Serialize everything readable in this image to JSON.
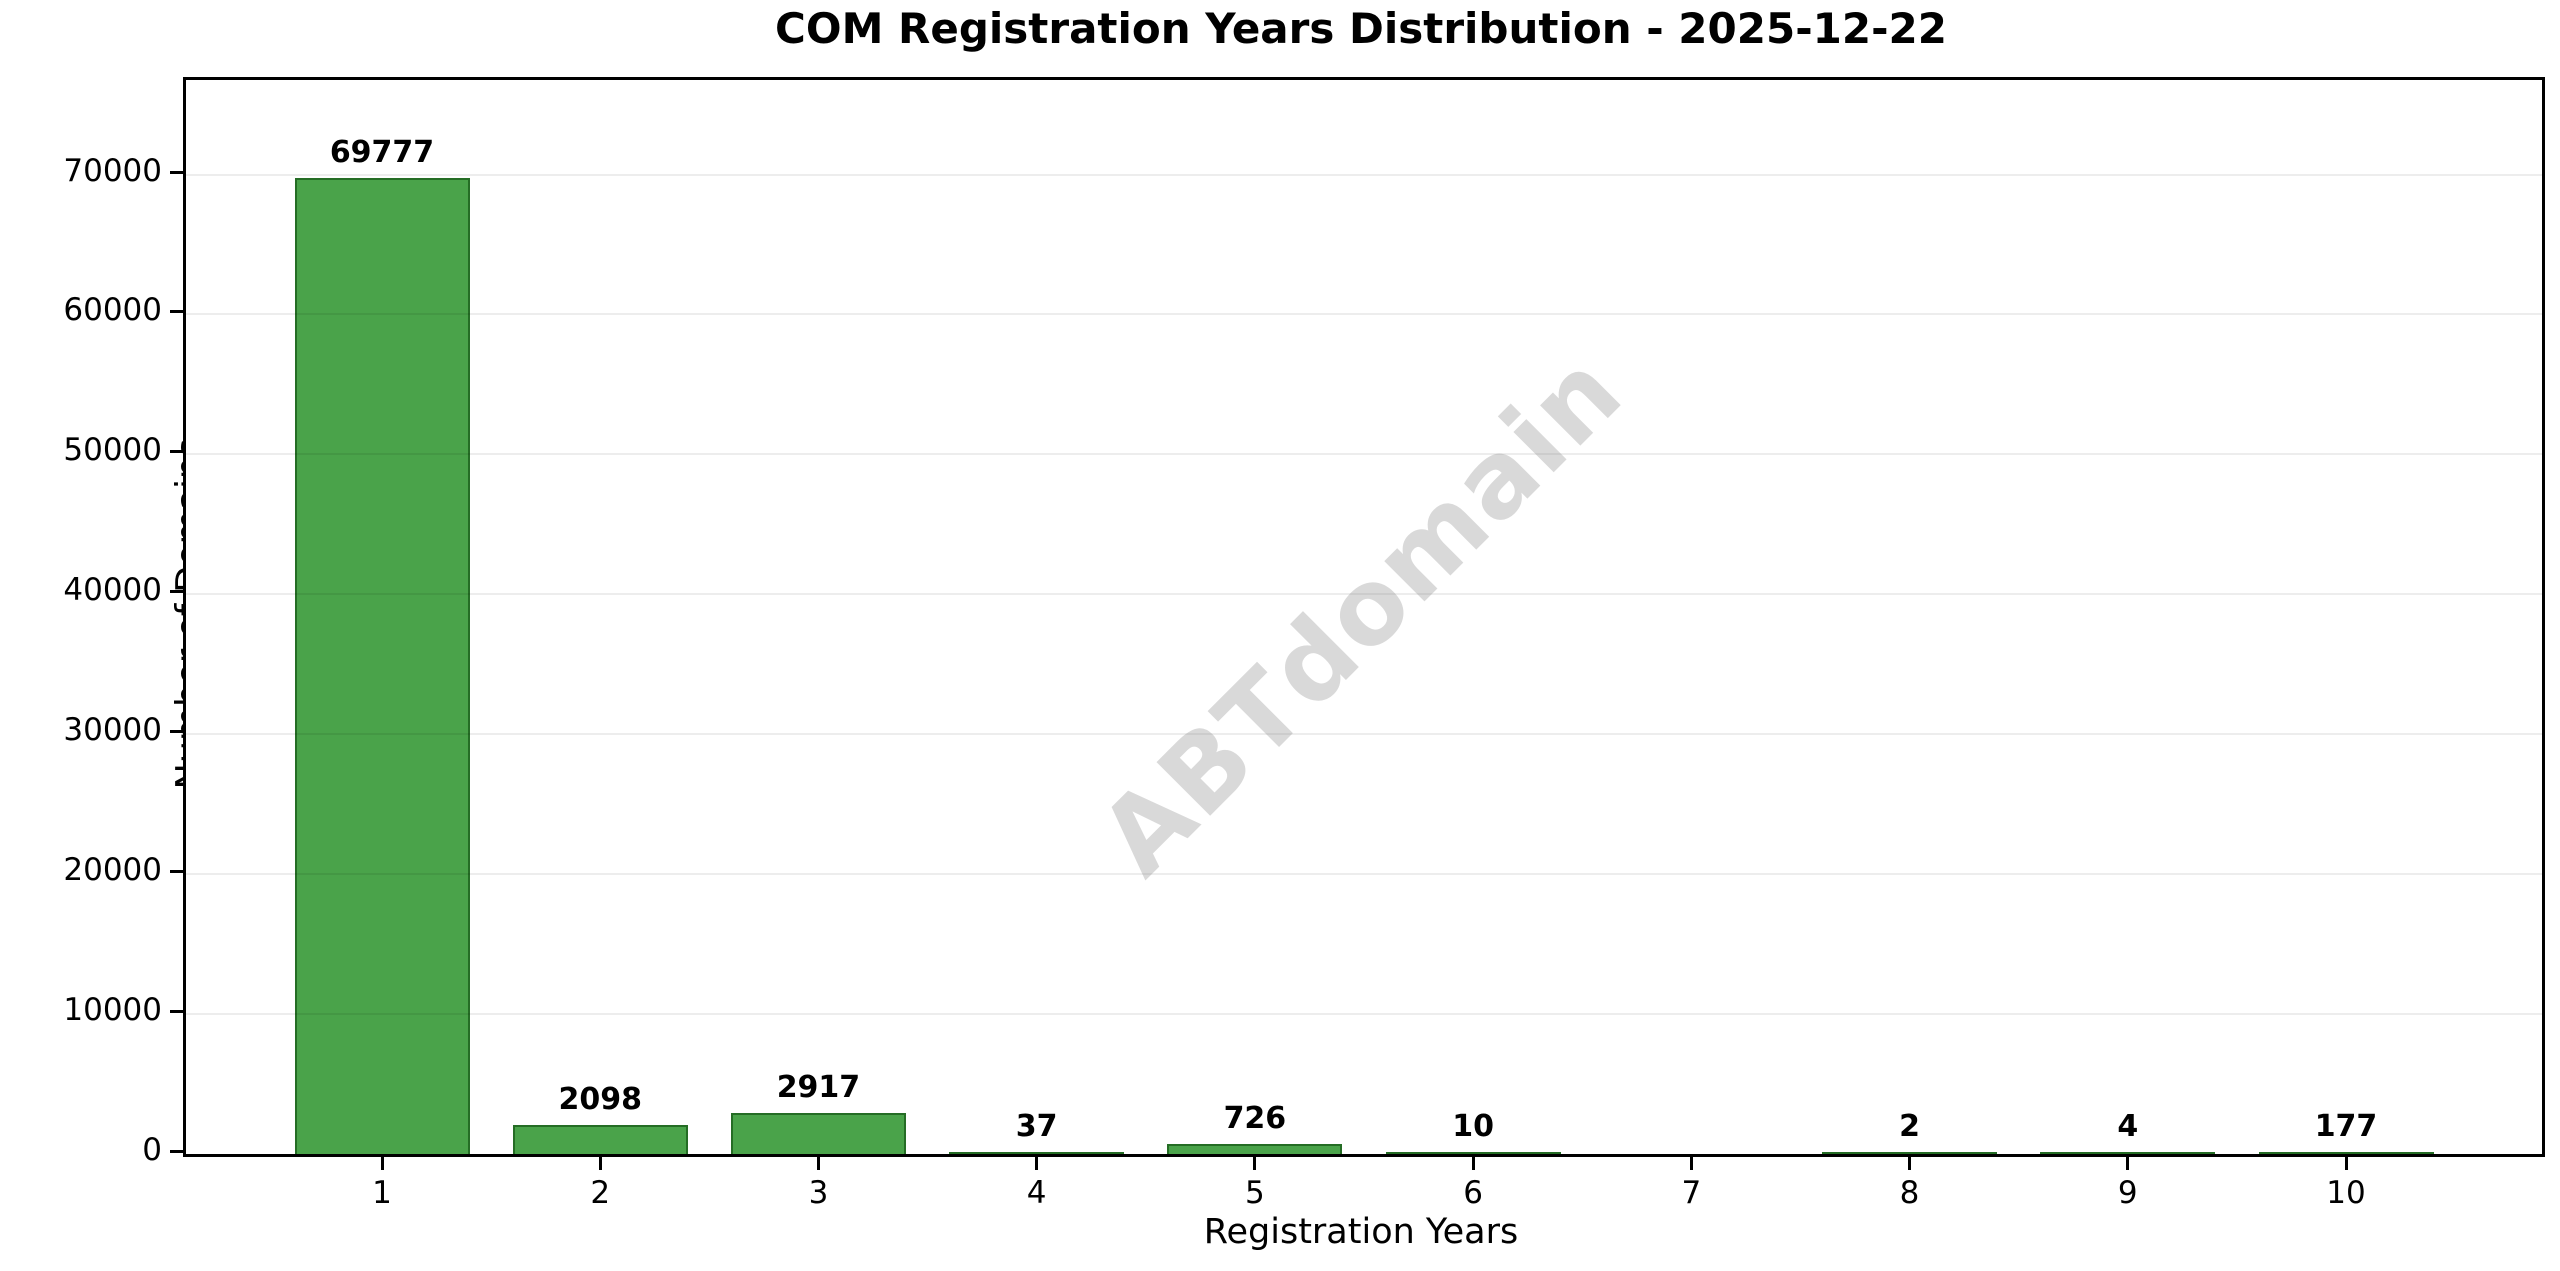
{
  "title": "COM Registration Years Distribution - 2025-12-22",
  "watermark_text": "ABTdomain",
  "chart_data": {
    "type": "bar",
    "title": "COM Registration Years Distribution - 2025-12-22",
    "xlabel": "Registration Years",
    "ylabel": "Number of Domains",
    "categories": [
      "1",
      "2",
      "3",
      "4",
      "5",
      "6",
      "7",
      "8",
      "9",
      "10"
    ],
    "values": [
      69777,
      2098,
      2917,
      37,
      726,
      10,
      0,
      2,
      4,
      177
    ],
    "bar_labels": [
      "69777",
      "2098",
      "2917",
      "37",
      "726",
      "10",
      "",
      "2",
      "4",
      "177"
    ],
    "yticks": [
      0,
      10000,
      20000,
      30000,
      40000,
      50000,
      60000,
      70000
    ],
    "ytick_labels": [
      "0",
      "10000",
      "20000",
      "30000",
      "40000",
      "50000",
      "60000",
      "70000"
    ],
    "ylim": [
      0,
      76755
    ],
    "grid": "horizontal gridlines only, light gray",
    "legend": "none",
    "bar_fill_color": "#4AA34A",
    "bar_edge_color": "#256D25",
    "watermark": {
      "text": "ABTdomain",
      "rotation_deg": -45,
      "color_rgba": "rgba(128,128,128,0.30)"
    }
  }
}
